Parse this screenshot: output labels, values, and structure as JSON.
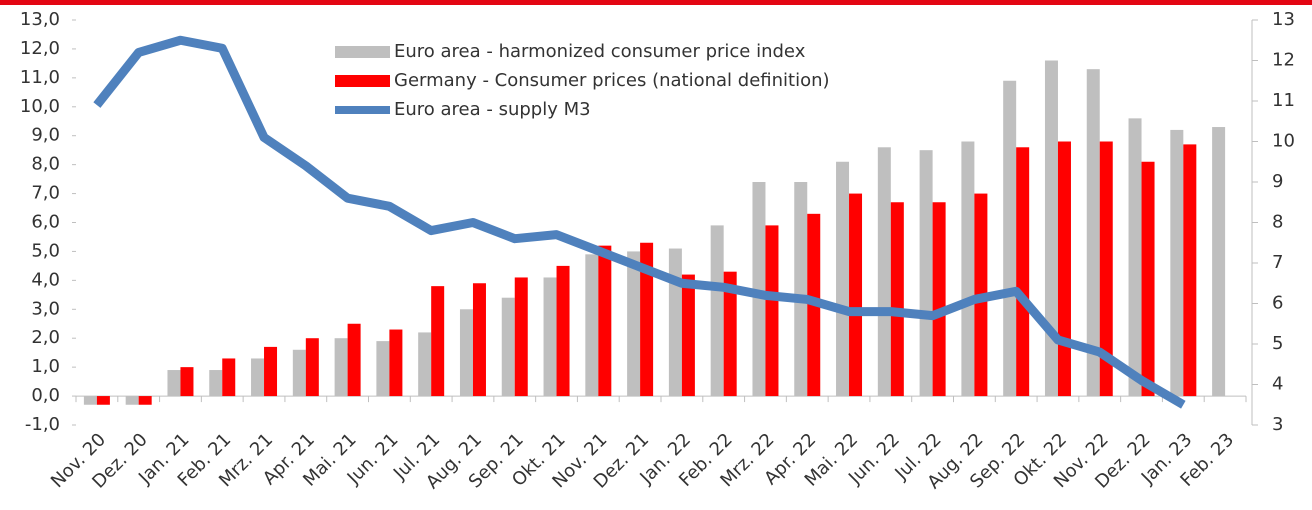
{
  "chart_data": {
    "type": "bar-line",
    "categories": [
      "Nov. 20",
      "Dez. 20",
      "Jan. 21",
      "Feb. 21",
      "Mrz. 21",
      "Apr. 21",
      "Mai. 21",
      "Jun. 21",
      "Jul. 21",
      "Aug. 21",
      "Sep. 21",
      "Okt. 21",
      "Nov. 21",
      "Dez. 21",
      "Jan. 22",
      "Feb. 22",
      "Mrz. 22",
      "Apr. 22",
      "Mai. 22",
      "Jun. 22",
      "Jul. 22",
      "Aug. 22",
      "Sep. 22",
      "Okt. 22",
      "Nov. 22",
      "Dez. 22",
      "Jan. 23",
      "Feb. 23"
    ],
    "series": [
      {
        "name": "Euro area - harmonized consumer price index",
        "type": "bar",
        "color": "#bfbfbf",
        "values": [
          -0.3,
          -0.3,
          0.9,
          0.9,
          1.3,
          1.6,
          2.0,
          1.9,
          2.2,
          3.0,
          3.4,
          4.1,
          4.9,
          5.0,
          5.1,
          5.9,
          7.4,
          7.4,
          8.1,
          8.6,
          8.5,
          8.8,
          10.9,
          11.6,
          11.3,
          9.6,
          9.2,
          9.3
        ]
      },
      {
        "name": "Germany - Consumer prices (national definition)",
        "type": "bar",
        "color": "#ff0000",
        "values": [
          -0.3,
          -0.3,
          1.0,
          1.3,
          1.7,
          2.0,
          2.5,
          2.3,
          3.8,
          3.9,
          4.1,
          4.5,
          5.2,
          5.3,
          4.2,
          4.3,
          5.9,
          6.3,
          7.0,
          6.7,
          6.7,
          7.0,
          8.6,
          8.8,
          8.8,
          8.1,
          8.7,
          null
        ]
      },
      {
        "name": "Euro area - supply M3",
        "type": "line",
        "axis": "y2",
        "color": "#4f81bd",
        "values": [
          10.9,
          12.2,
          12.5,
          12.3,
          10.1,
          9.4,
          8.6,
          8.4,
          7.8,
          8.0,
          7.6,
          7.7,
          7.3,
          6.9,
          6.5,
          6.4,
          6.2,
          6.1,
          5.8,
          5.8,
          5.7,
          6.1,
          6.3,
          5.1,
          4.8,
          4.1,
          3.5,
          null
        ]
      }
    ],
    "ylim": [
      -1,
      13
    ],
    "yticks": [
      {
        "value": -1,
        "label": "-1,0"
      },
      {
        "value": 0,
        "label": "0,0"
      },
      {
        "value": 1,
        "label": "1,0"
      },
      {
        "value": 2,
        "label": "2,0"
      },
      {
        "value": 3,
        "label": "3,0"
      },
      {
        "value": 4,
        "label": "4,0"
      },
      {
        "value": 5,
        "label": "5,0"
      },
      {
        "value": 6,
        "label": "6,0"
      },
      {
        "value": 7,
        "label": "7,0"
      },
      {
        "value": 8,
        "label": "8,0"
      },
      {
        "value": 9,
        "label": "9,0"
      },
      {
        "value": 10,
        "label": "10,0"
      },
      {
        "value": 11,
        "label": "11,0"
      },
      {
        "value": 12,
        "label": "12,0"
      },
      {
        "value": 13,
        "label": "13,0"
      }
    ],
    "y2lim": [
      3,
      13
    ],
    "y2ticks": [
      3,
      4,
      5,
      6,
      7,
      8,
      9,
      10,
      11,
      12,
      13
    ],
    "grid": false,
    "legend": "top"
  }
}
